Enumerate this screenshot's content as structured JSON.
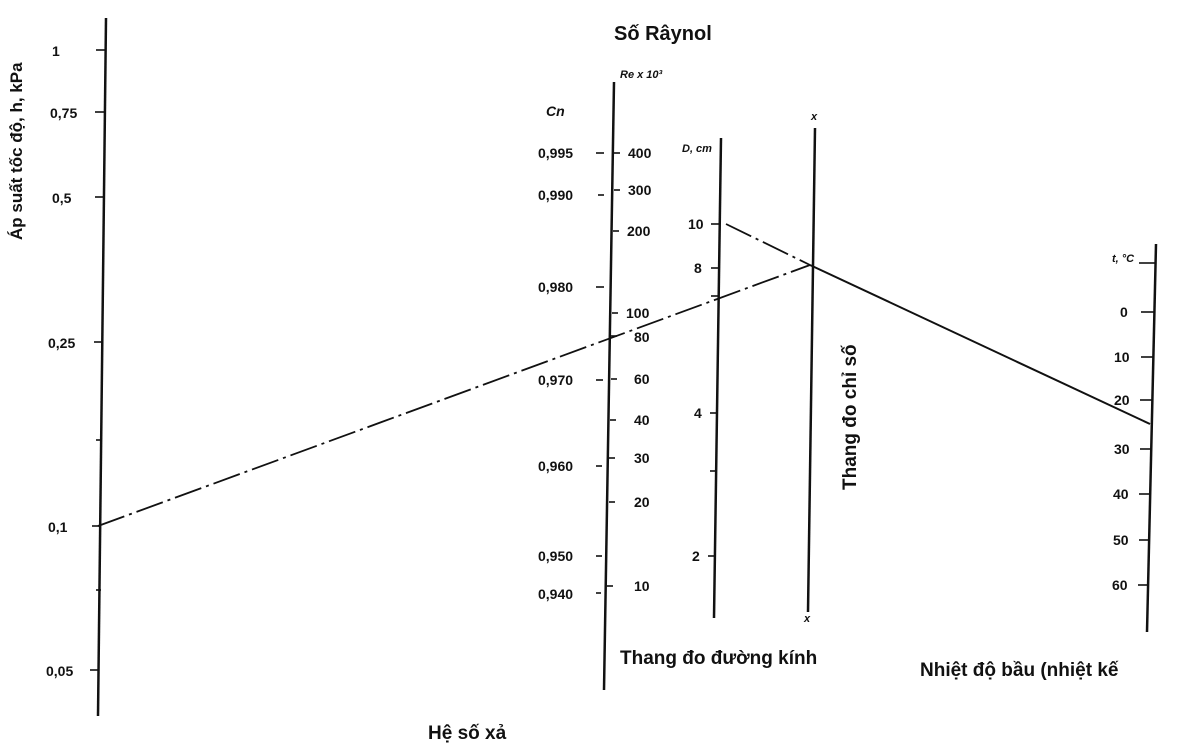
{
  "titles": {
    "reynolds": "Số Râynol",
    "pressure_axis": "Áp suất tốc độ, h, kPa",
    "discharge": "Hệ số xả",
    "diameter": "Thang đo đường kính",
    "index": "Thang đo chỉ số",
    "temperature": "Nhiệt độ bầu (nhiệt kế"
  },
  "axis_units": {
    "cn": "Cn",
    "re": "Re x 10³",
    "d": "D, cm",
    "t": "t, °C",
    "x_top": "x",
    "x_bottom": "x"
  },
  "scales": {
    "pressure": [
      "1",
      "0,75",
      "0,5",
      "0,25",
      "0,1",
      "0,05"
    ],
    "cn": [
      "0,995",
      "0,990",
      "0,980",
      "0,970",
      "0,960",
      "0,950",
      "0,940"
    ],
    "re": [
      "400",
      "300",
      "200",
      "100",
      "80",
      "60",
      "40",
      "30",
      "20",
      "10"
    ],
    "diameter": [
      "10",
      "8",
      "4",
      "2"
    ],
    "temperature": [
      "0",
      "10",
      "20",
      "30",
      "40",
      "50",
      "60"
    ]
  }
}
